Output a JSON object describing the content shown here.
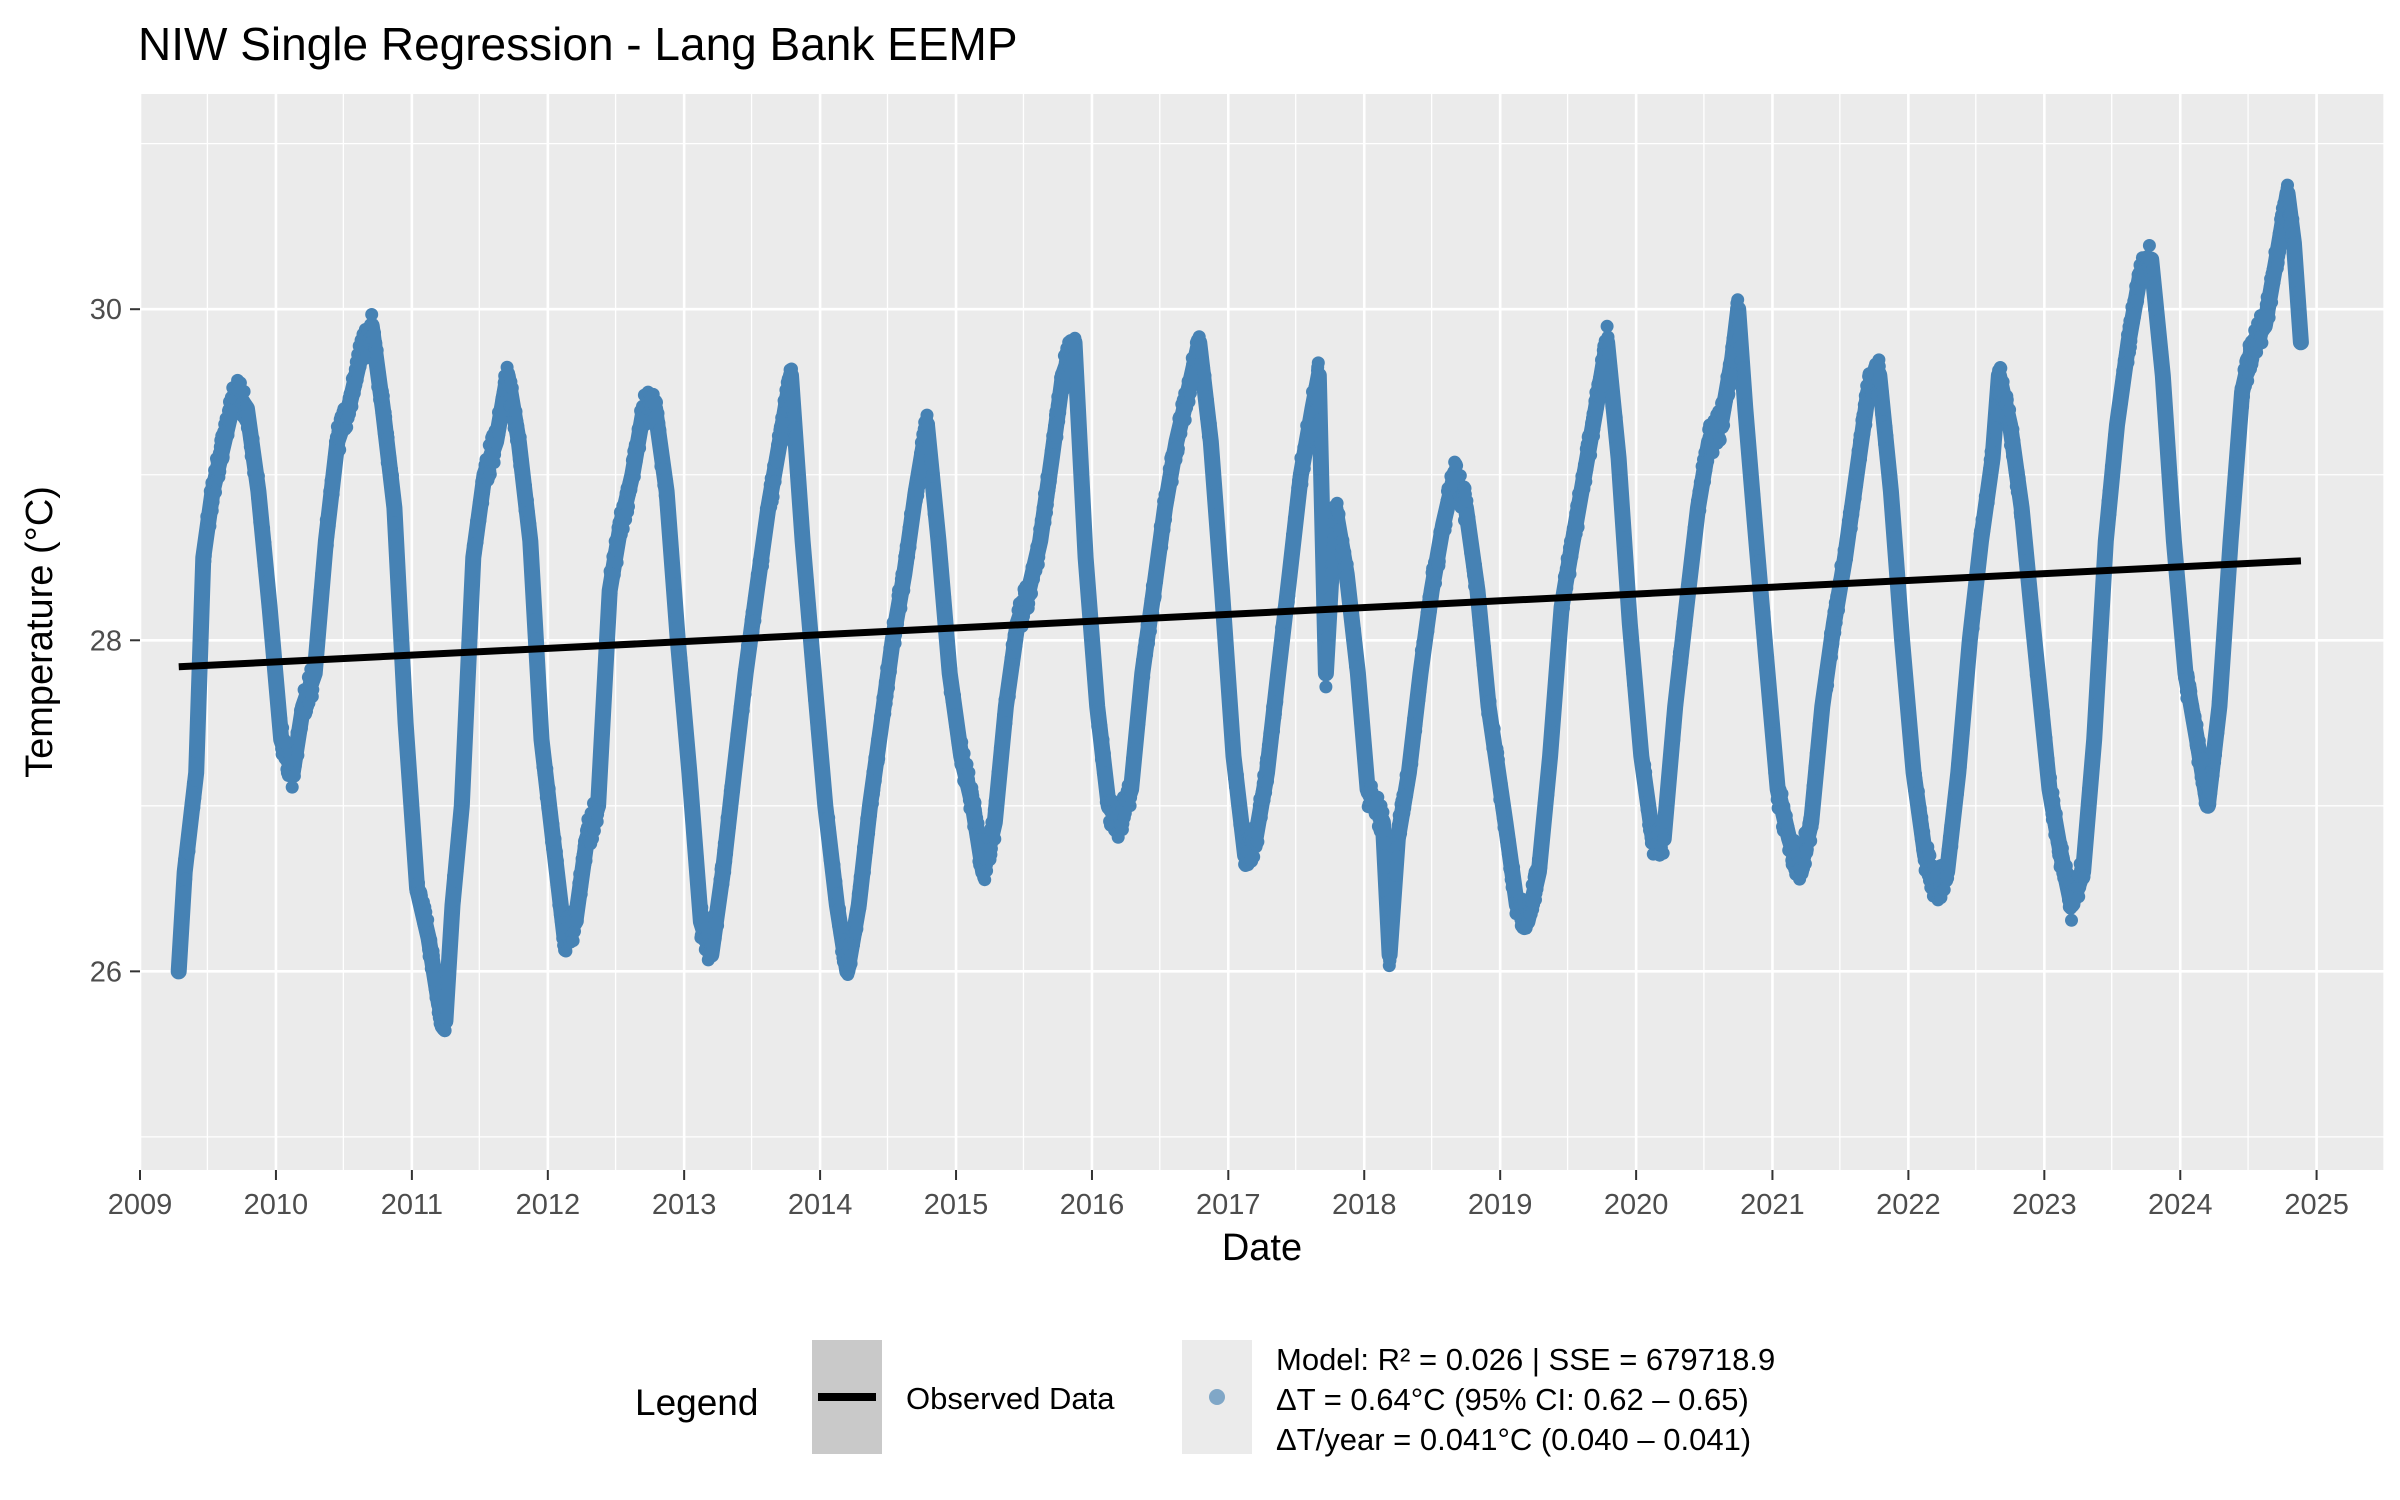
{
  "chart_data": {
    "type": "line",
    "title": "NIW Single Regression - Lang Bank EEMP",
    "xlabel": "Date",
    "ylabel": "Temperature (°C)",
    "xlim": [
      "2009-01-01",
      "2025-07-01"
    ],
    "ylim": [
      24.8,
      31.3
    ],
    "x_ticks": [
      "2009",
      "2010",
      "2011",
      "2012",
      "2013",
      "2014",
      "2015",
      "2016",
      "2017",
      "2018",
      "2019",
      "2020",
      "2021",
      "2022",
      "2023",
      "2024",
      "2025"
    ],
    "y_ticks": [
      26,
      28,
      30
    ],
    "grid": true,
    "legend_position": "bottom",
    "colors": {
      "observed": "#4682b4",
      "trend": "#000000",
      "panel": "#ebebeb",
      "grid": "#ffffff"
    },
    "series": [
      {
        "kind": "points",
        "color": "#4682b4",
        "points": [
          [
            "2009-04-15",
            26.0
          ],
          [
            "2009-05-01",
            26.6
          ],
          [
            "2009-06-01",
            27.2
          ],
          [
            "2009-06-20",
            28.5
          ],
          [
            "2009-07-15",
            28.9
          ],
          [
            "2009-08-15",
            29.2
          ],
          [
            "2009-09-15",
            29.5
          ],
          [
            "2009-10-15",
            29.4
          ],
          [
            "2009-11-15",
            28.9
          ],
          [
            "2009-12-15",
            28.2
          ],
          [
            "2010-01-15",
            27.4
          ],
          [
            "2010-02-15",
            27.2
          ],
          [
            "2010-03-15",
            27.6
          ],
          [
            "2010-04-15",
            27.8
          ],
          [
            "2010-05-15",
            28.6
          ],
          [
            "2010-06-15",
            29.2
          ],
          [
            "2010-07-15",
            29.4
          ],
          [
            "2010-08-15",
            29.7
          ],
          [
            "2010-09-15",
            29.9
          ],
          [
            "2010-10-15",
            29.4
          ],
          [
            "2010-11-15",
            28.8
          ],
          [
            "2010-12-15",
            27.5
          ],
          [
            "2011-01-15",
            26.5
          ],
          [
            "2011-02-15",
            26.2
          ],
          [
            "2011-03-15",
            25.8
          ],
          [
            "2011-04-01",
            25.7
          ],
          [
            "2011-04-20",
            26.4
          ],
          [
            "2011-05-15",
            27.0
          ],
          [
            "2011-06-15",
            28.5
          ],
          [
            "2011-07-15",
            29.0
          ],
          [
            "2011-08-15",
            29.2
          ],
          [
            "2011-09-15",
            29.6
          ],
          [
            "2011-10-15",
            29.2
          ],
          [
            "2011-11-15",
            28.6
          ],
          [
            "2011-12-15",
            27.4
          ],
          [
            "2012-01-15",
            26.8
          ],
          [
            "2012-02-15",
            26.2
          ],
          [
            "2012-03-15",
            26.3
          ],
          [
            "2012-04-15",
            26.8
          ],
          [
            "2012-05-15",
            27.0
          ],
          [
            "2012-06-15",
            28.3
          ],
          [
            "2012-07-15",
            28.7
          ],
          [
            "2012-08-15",
            29.0
          ],
          [
            "2012-09-15",
            29.4
          ],
          [
            "2012-10-15",
            29.4
          ],
          [
            "2012-11-15",
            28.9
          ],
          [
            "2012-12-15",
            28.0
          ],
          [
            "2013-01-15",
            27.2
          ],
          [
            "2013-02-15",
            26.3
          ],
          [
            "2013-03-15",
            26.1
          ],
          [
            "2013-04-15",
            26.6
          ],
          [
            "2013-05-15",
            27.2
          ],
          [
            "2013-06-15",
            27.8
          ],
          [
            "2013-07-15",
            28.3
          ],
          [
            "2013-08-15",
            28.8
          ],
          [
            "2013-09-15",
            29.2
          ],
          [
            "2013-10-15",
            29.6
          ],
          [
            "2013-11-15",
            28.6
          ],
          [
            "2013-12-15",
            27.8
          ],
          [
            "2014-01-15",
            27.0
          ],
          [
            "2014-02-15",
            26.4
          ],
          [
            "2014-03-15",
            26.0
          ],
          [
            "2014-04-15",
            26.4
          ],
          [
            "2014-05-15",
            27.0
          ],
          [
            "2014-06-15",
            27.5
          ],
          [
            "2014-07-15",
            28.0
          ],
          [
            "2014-08-15",
            28.4
          ],
          [
            "2014-09-15",
            28.9
          ],
          [
            "2014-10-15",
            29.3
          ],
          [
            "2014-11-15",
            28.6
          ],
          [
            "2014-12-15",
            27.8
          ],
          [
            "2015-01-15",
            27.3
          ],
          [
            "2015-02-15",
            27.0
          ],
          [
            "2015-03-15",
            26.6
          ],
          [
            "2015-04-15",
            26.9
          ],
          [
            "2015-05-15",
            27.6
          ],
          [
            "2015-06-15",
            28.1
          ],
          [
            "2015-07-15",
            28.3
          ],
          [
            "2015-08-15",
            28.6
          ],
          [
            "2015-09-15",
            29.1
          ],
          [
            "2015-10-15",
            29.6
          ],
          [
            "2015-11-15",
            29.8
          ],
          [
            "2015-12-15",
            28.5
          ],
          [
            "2016-01-15",
            27.6
          ],
          [
            "2016-02-15",
            27.0
          ],
          [
            "2016-03-15",
            26.9
          ],
          [
            "2016-04-15",
            27.1
          ],
          [
            "2016-05-15",
            27.8
          ],
          [
            "2016-06-15",
            28.3
          ],
          [
            "2016-07-15",
            28.8
          ],
          [
            "2016-08-15",
            29.2
          ],
          [
            "2016-09-15",
            29.5
          ],
          [
            "2016-10-15",
            29.8
          ],
          [
            "2016-11-15",
            29.2
          ],
          [
            "2016-12-15",
            28.3
          ],
          [
            "2017-01-15",
            27.3
          ],
          [
            "2017-02-15",
            26.7
          ],
          [
            "2017-03-15",
            26.8
          ],
          [
            "2017-04-15",
            27.2
          ],
          [
            "2017-05-15",
            27.8
          ],
          [
            "2017-06-15",
            28.4
          ],
          [
            "2017-07-15",
            29.0
          ],
          [
            "2017-08-15",
            29.4
          ],
          [
            "2017-09-01",
            29.6
          ],
          [
            "2017-09-20",
            27.8
          ],
          [
            "2017-10-15",
            28.8
          ],
          [
            "2017-11-15",
            28.4
          ],
          [
            "2017-12-15",
            27.8
          ],
          [
            "2018-01-10",
            27.1
          ],
          [
            "2018-02-20",
            26.9
          ],
          [
            "2018-03-10",
            26.1
          ],
          [
            "2018-04-01",
            26.8
          ],
          [
            "2018-05-01",
            27.2
          ],
          [
            "2018-06-01",
            27.8
          ],
          [
            "2018-07-01",
            28.3
          ],
          [
            "2018-08-01",
            28.7
          ],
          [
            "2018-09-01",
            29.0
          ],
          [
            "2018-10-01",
            28.8
          ],
          [
            "2018-11-01",
            28.3
          ],
          [
            "2018-12-01",
            27.6
          ],
          [
            "2019-01-15",
            26.9
          ],
          [
            "2019-02-15",
            26.4
          ],
          [
            "2019-03-15",
            26.3
          ],
          [
            "2019-04-15",
            26.6
          ],
          [
            "2019-05-15",
            27.3
          ],
          [
            "2019-06-15",
            28.2
          ],
          [
            "2019-07-15",
            28.6
          ],
          [
            "2019-08-15",
            29.0
          ],
          [
            "2019-09-15",
            29.4
          ],
          [
            "2019-10-15",
            29.8
          ],
          [
            "2019-11-15",
            29.1
          ],
          [
            "2019-12-15",
            28.1
          ],
          [
            "2020-01-15",
            27.3
          ],
          [
            "2020-02-15",
            26.8
          ],
          [
            "2020-03-15",
            26.8
          ],
          [
            "2020-04-15",
            27.6
          ],
          [
            "2020-05-15",
            28.2
          ],
          [
            "2020-06-15",
            28.8
          ],
          [
            "2020-07-15",
            29.2
          ],
          [
            "2020-08-15",
            29.3
          ],
          [
            "2020-09-15",
            29.7
          ],
          [
            "2020-10-01",
            30.0
          ],
          [
            "2020-10-20",
            29.4
          ],
          [
            "2020-11-15",
            28.7
          ],
          [
            "2020-12-15",
            27.9
          ],
          [
            "2021-01-15",
            27.1
          ],
          [
            "2021-02-15",
            26.8
          ],
          [
            "2021-03-15",
            26.6
          ],
          [
            "2021-04-15",
            26.9
          ],
          [
            "2021-05-15",
            27.6
          ],
          [
            "2021-06-15",
            28.1
          ],
          [
            "2021-07-15",
            28.5
          ],
          [
            "2021-08-15",
            29.0
          ],
          [
            "2021-09-15",
            29.5
          ],
          [
            "2021-10-15",
            29.6
          ],
          [
            "2021-11-15",
            28.9
          ],
          [
            "2021-12-15",
            28.0
          ],
          [
            "2022-01-15",
            27.2
          ],
          [
            "2022-02-15",
            26.7
          ],
          [
            "2022-03-15",
            26.5
          ],
          [
            "2022-04-15",
            26.6
          ],
          [
            "2022-05-15",
            27.2
          ],
          [
            "2022-06-15",
            28.0
          ],
          [
            "2022-07-15",
            28.6
          ],
          [
            "2022-08-15",
            29.1
          ],
          [
            "2022-09-01",
            29.6
          ],
          [
            "2022-10-01",
            29.3
          ],
          [
            "2022-11-01",
            28.8
          ],
          [
            "2022-12-01",
            28.1
          ],
          [
            "2023-01-15",
            27.1
          ],
          [
            "2023-02-15",
            26.7
          ],
          [
            "2023-03-15",
            26.4
          ],
          [
            "2023-04-15",
            26.6
          ],
          [
            "2023-05-15",
            27.4
          ],
          [
            "2023-06-15",
            28.6
          ],
          [
            "2023-07-15",
            29.3
          ],
          [
            "2023-08-15",
            29.8
          ],
          [
            "2023-09-15",
            30.2
          ],
          [
            "2023-10-15",
            30.3
          ],
          [
            "2023-11-15",
            29.6
          ],
          [
            "2023-12-15",
            28.6
          ],
          [
            "2024-01-15",
            27.8
          ],
          [
            "2024-02-15",
            27.4
          ],
          [
            "2024-03-15",
            27.0
          ],
          [
            "2024-04-15",
            27.6
          ],
          [
            "2024-05-15",
            28.6
          ],
          [
            "2024-06-15",
            29.5
          ],
          [
            "2024-07-15",
            29.8
          ],
          [
            "2024-08-15",
            29.9
          ],
          [
            "2024-09-15",
            30.3
          ],
          [
            "2024-10-15",
            30.7
          ],
          [
            "2024-11-01",
            30.4
          ],
          [
            "2024-11-20",
            29.8
          ]
        ]
      },
      {
        "kind": "trend",
        "color": "#000000",
        "points": [
          [
            "2009-04-15",
            27.84
          ],
          [
            "2024-11-20",
            28.48
          ]
        ]
      }
    ]
  },
  "legend": {
    "title": "Legend",
    "line_label": "Observed Data",
    "model_lines": [
      "Model: R² = 0.026 | SSE = 679718.9",
      "ΔT = 0.64°C (95% CI: 0.62 – 0.65)",
      "ΔT/year = 0.041°C (0.040 – 0.041)"
    ]
  }
}
